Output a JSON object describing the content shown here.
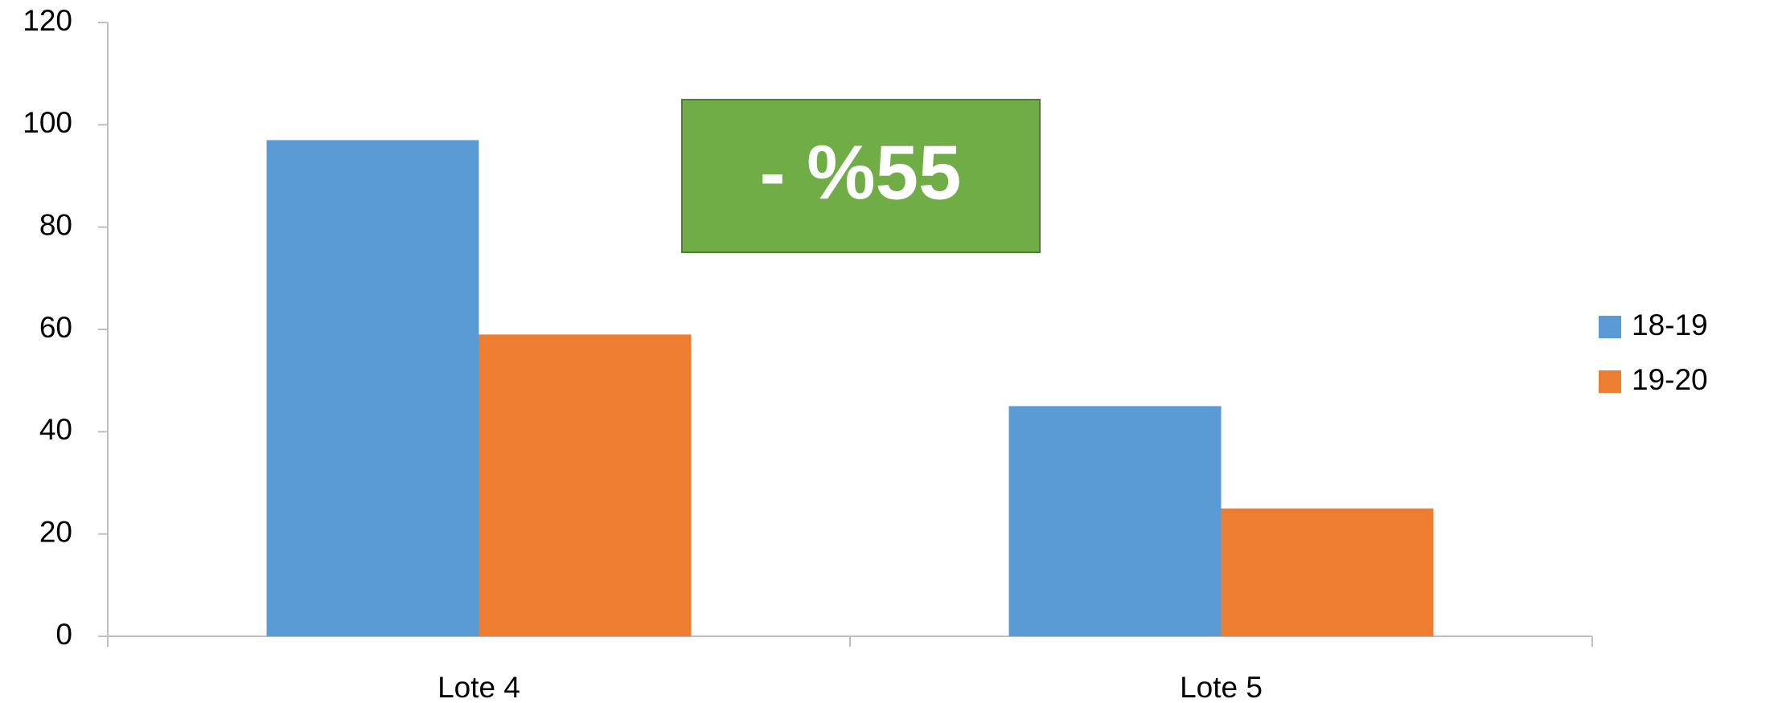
{
  "chart_data": {
    "type": "bar",
    "categories": [
      "Lote 4",
      "Lote 5"
    ],
    "series": [
      {
        "name": "18-19",
        "color": "#5b9bd5",
        "values": [
          97,
          45
        ]
      },
      {
        "name": "19-20",
        "color": "#ed7d31",
        "values": [
          59,
          25
        ]
      }
    ],
    "ylim": [
      0,
      120
    ],
    "yticks": [
      0,
      20,
      40,
      60,
      80,
      100,
      120
    ],
    "grid": false,
    "legend": "right",
    "annotation": {
      "text": "- %55",
      "color": "#70ad47"
    }
  }
}
